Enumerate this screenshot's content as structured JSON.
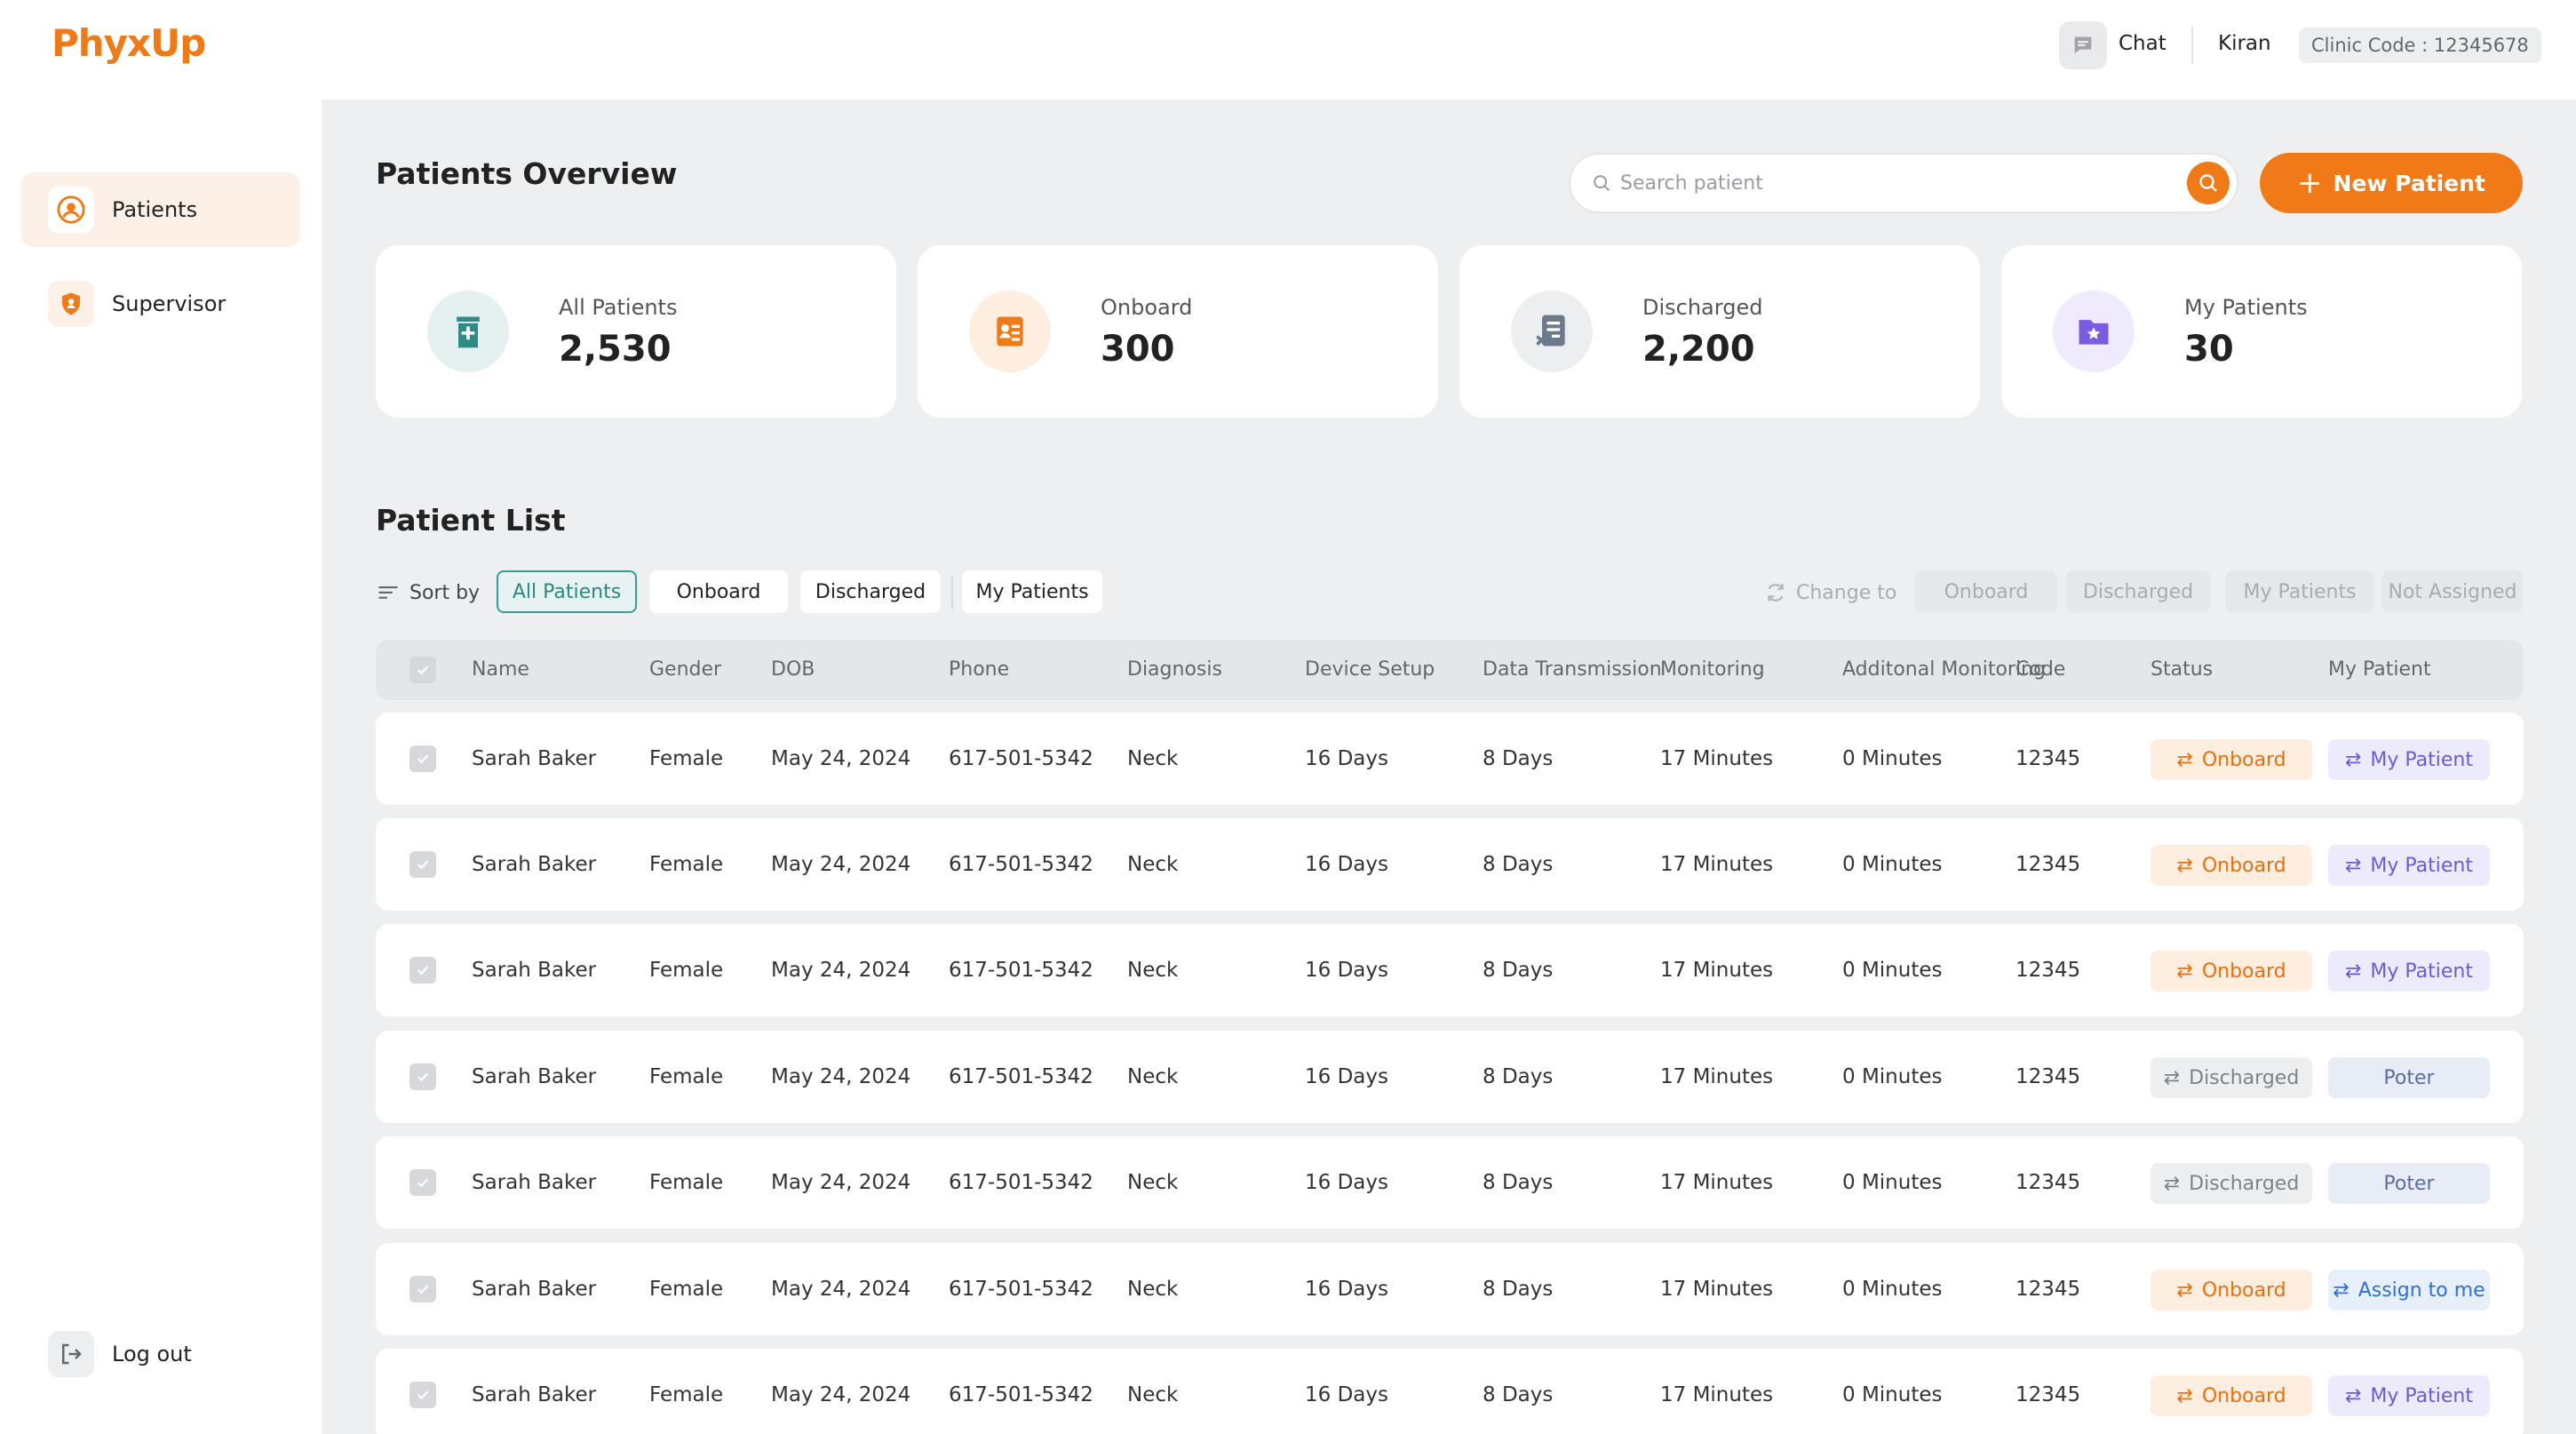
{
  "header": {
    "logo": "PhyxUp",
    "chat_label": "Chat",
    "user_name": "Kiran",
    "clinic_code": "Clinic Code : 12345678"
  },
  "sidebar": {
    "items": [
      {
        "label": "Patients",
        "icon": "user-circle-icon",
        "active": true
      },
      {
        "label": "Supervisor",
        "icon": "shield-user-icon",
        "active": false
      }
    ],
    "logout_label": "Log out"
  },
  "main": {
    "title": "Patients Overview",
    "search_placeholder": "Search patient",
    "new_patient_label": "New Patient"
  },
  "stats": [
    {
      "label": "All Patients",
      "value": "2,530",
      "icon": "hospital-icon",
      "color": "#2f8c85"
    },
    {
      "label": "Onboard",
      "value": "300",
      "icon": "id-card-icon",
      "color": "#f07a18"
    },
    {
      "label": "Discharged",
      "value": "2,200",
      "icon": "clipboard-x-icon",
      "color": "#6b7a8d"
    },
    {
      "label": "My Patients",
      "value": "30",
      "icon": "folder-star-icon",
      "color": "#7a5ce0"
    }
  ],
  "patient_list": {
    "title": "Patient List",
    "sort_label": "Sort by",
    "filters": [
      "All Patients",
      "Onboard",
      "Discharged",
      "My Patients"
    ],
    "change_to_label": "Change to",
    "change_options": [
      "Onboard",
      "Discharged",
      "My Patients",
      "Not Assigned"
    ],
    "columns": [
      "Name",
      "Gender",
      "DOB",
      "Phone",
      "Diagnosis",
      "Device Setup",
      "Data Transmission",
      "Monitoring",
      "Additonal Monitoring",
      "Code",
      "Status",
      "My Patient"
    ],
    "rows": [
      {
        "name": "Sarah Baker",
        "gender": "Female",
        "dob": "May 24, 2024",
        "phone": "617-501-5342",
        "diagnosis": "Neck",
        "device_setup": "16 Days",
        "data_transmission": "8 Days",
        "monitoring": "17 Minutes",
        "additional": "0 Minutes",
        "code": "12345",
        "status": "Onboard",
        "my_patient": "My Patient"
      },
      {
        "name": "Sarah Baker",
        "gender": "Female",
        "dob": "May 24, 2024",
        "phone": "617-501-5342",
        "diagnosis": "Neck",
        "device_setup": "16 Days",
        "data_transmission": "8 Days",
        "monitoring": "17 Minutes",
        "additional": "0 Minutes",
        "code": "12345",
        "status": "Onboard",
        "my_patient": "My Patient"
      },
      {
        "name": "Sarah Baker",
        "gender": "Female",
        "dob": "May 24, 2024",
        "phone": "617-501-5342",
        "diagnosis": "Neck",
        "device_setup": "16 Days",
        "data_transmission": "8 Days",
        "monitoring": "17 Minutes",
        "additional": "0 Minutes",
        "code": "12345",
        "status": "Onboard",
        "my_patient": "My Patient"
      },
      {
        "name": "Sarah Baker",
        "gender": "Female",
        "dob": "May 24, 2024",
        "phone": "617-501-5342",
        "diagnosis": "Neck",
        "device_setup": "16 Days",
        "data_transmission": "8 Days",
        "monitoring": "17 Minutes",
        "additional": "0 Minutes",
        "code": "12345",
        "status": "Discharged",
        "my_patient": "Poter"
      },
      {
        "name": "Sarah Baker",
        "gender": "Female",
        "dob": "May 24, 2024",
        "phone": "617-501-5342",
        "diagnosis": "Neck",
        "device_setup": "16 Days",
        "data_transmission": "8 Days",
        "monitoring": "17 Minutes",
        "additional": "0 Minutes",
        "code": "12345",
        "status": "Discharged",
        "my_patient": "Poter"
      },
      {
        "name": "Sarah Baker",
        "gender": "Female",
        "dob": "May 24, 2024",
        "phone": "617-501-5342",
        "diagnosis": "Neck",
        "device_setup": "16 Days",
        "data_transmission": "8 Days",
        "monitoring": "17 Minutes",
        "additional": "0 Minutes",
        "code": "12345",
        "status": "Onboard",
        "my_patient": "Assign to me"
      },
      {
        "name": "Sarah Baker",
        "gender": "Female",
        "dob": "May 24, 2024",
        "phone": "617-501-5342",
        "diagnosis": "Neck",
        "device_setup": "16 Days",
        "data_transmission": "8 Days",
        "monitoring": "17 Minutes",
        "additional": "0 Minutes",
        "code": "12345",
        "status": "Onboard",
        "my_patient": "My Patient"
      }
    ]
  },
  "colors": {
    "accent": "#f07a18",
    "teal": "#2f8c85",
    "purple": "#6c5bd6",
    "blue": "#2f6fd9"
  }
}
